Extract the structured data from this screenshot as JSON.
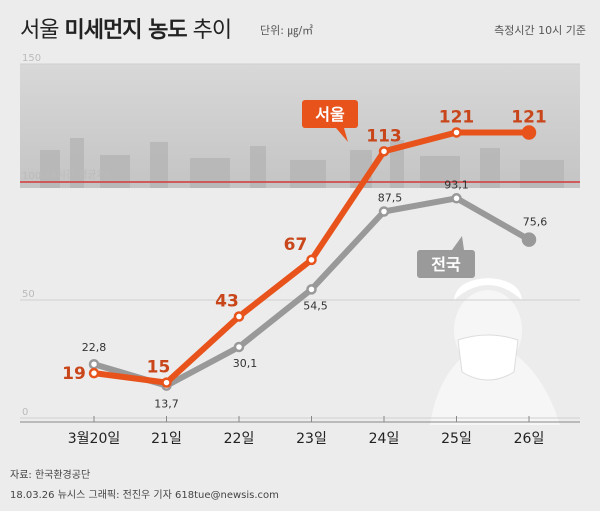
{
  "title": {
    "prefix": "서울",
    "bold": "미세먼지 농도",
    "suffix": "추이",
    "unit": "단위: ㎍/㎥"
  },
  "note": "측정시간 10시 기준",
  "source": "자료: 한국환경공단",
  "credit": "18.03.26 뉴시스 그래픽: 전진우 기자 618tue@newsis.com",
  "colors": {
    "seoul": "#e8531c",
    "national": "#999999",
    "threshold": "#d23a3a"
  },
  "chart_data": {
    "type": "line",
    "categories": [
      "3월20일",
      "21일",
      "22일",
      "23일",
      "24일",
      "25일",
      "26일"
    ],
    "series": [
      {
        "name": "서울",
        "values": [
          19,
          15,
          43,
          67,
          113,
          121,
          121
        ]
      },
      {
        "name": "전국",
        "values": [
          22.8,
          13.7,
          30.1,
          54.5,
          87.5,
          93.1,
          75.6
        ]
      }
    ],
    "value_labels": {
      "서울": [
        "19",
        "15",
        "43",
        "67",
        "113",
        "121",
        "121"
      ],
      "전국": [
        "22,8",
        "13,7",
        "30,1",
        "54,5",
        "87,5",
        "93,1",
        "75,6"
      ]
    },
    "ylim": [
      0,
      150
    ],
    "yticks": [
      "0",
      "50",
      "100",
      "150"
    ],
    "threshold": {
      "value": 100,
      "label": "(24시간 평균치)"
    }
  }
}
